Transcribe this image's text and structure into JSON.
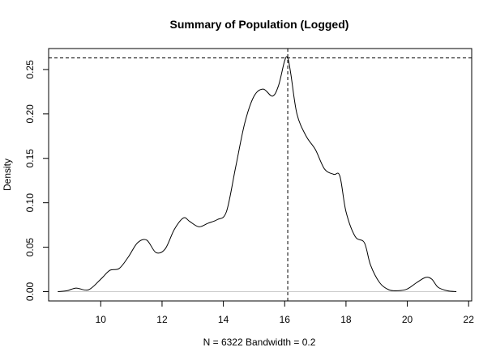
{
  "chart_data": {
    "type": "line",
    "title": "Summary of Population (Logged)",
    "xlabel": "N = 6322   Bandwidth = 0.2",
    "ylabel": "Density",
    "xlim": [
      8.3,
      22.1
    ],
    "ylim": [
      -0.0105,
      0.2736
    ],
    "x_ticks": [
      "10",
      "12",
      "14",
      "16",
      "18",
      "20",
      "22"
    ],
    "y_ticks": [
      "0.00",
      "0.05",
      "0.10",
      "0.15",
      "0.20",
      "0.25"
    ],
    "mode_line": {
      "x": 16.1,
      "y": 0.263,
      "style": "dashed"
    },
    "zero_line_color": "#cccccc",
    "line_color": "#000000",
    "series": [
      {
        "x": [
          8.6,
          8.9,
          9.2,
          9.6,
          10.0,
          10.3,
          10.6,
          10.9,
          11.2,
          11.5,
          11.8,
          12.1,
          12.4,
          12.7,
          12.9,
          13.2,
          13.5,
          13.8,
          14.1,
          14.4,
          14.7,
          15.0,
          15.3,
          15.6,
          15.8,
          16.0,
          16.1,
          16.2,
          16.4,
          16.7,
          17.0,
          17.3,
          17.6,
          17.8,
          18.0,
          18.3,
          18.6,
          18.8,
          19.1,
          19.4,
          19.7,
          20.0,
          20.3,
          20.6,
          20.8,
          21.0,
          21.3,
          21.6
        ],
        "y": [
          0.0,
          0.001,
          0.004,
          0.002,
          0.014,
          0.024,
          0.026,
          0.039,
          0.055,
          0.058,
          0.044,
          0.048,
          0.07,
          0.083,
          0.079,
          0.073,
          0.077,
          0.081,
          0.09,
          0.14,
          0.19,
          0.22,
          0.228,
          0.22,
          0.232,
          0.26,
          0.263,
          0.245,
          0.2,
          0.175,
          0.16,
          0.138,
          0.132,
          0.13,
          0.09,
          0.062,
          0.055,
          0.03,
          0.01,
          0.002,
          0.001,
          0.003,
          0.01,
          0.016,
          0.014,
          0.005,
          0.001,
          0.0
        ]
      }
    ]
  }
}
